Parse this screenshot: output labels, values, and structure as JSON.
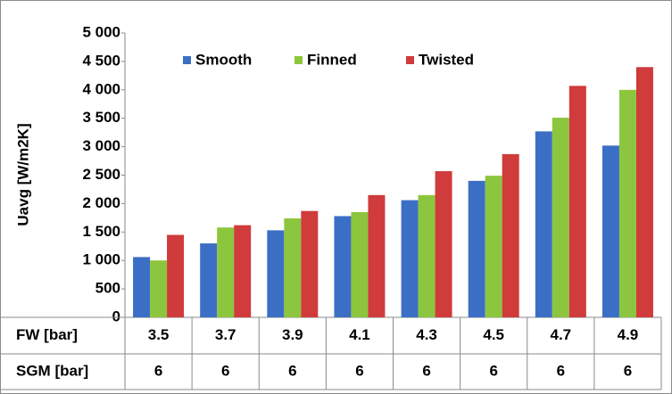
{
  "chart_data": {
    "type": "bar",
    "y_label": "Uavg [W/m2K]",
    "categories": [
      "3.5",
      "3.7",
      "3.9",
      "4.1",
      "4.3",
      "4.5",
      "4.7",
      "4.9"
    ],
    "category_label": "FW [bar]",
    "secondary_categories": {
      "label": "SGM [bar]",
      "values": [
        "6",
        "6",
        "6",
        "6",
        "6",
        "6",
        "6",
        "6"
      ]
    },
    "series": [
      {
        "name": "Smooth",
        "color": "#3b6fc6",
        "values": [
          1060,
          1300,
          1530,
          1780,
          2060,
          2400,
          3270,
          3020
        ]
      },
      {
        "name": "Finned",
        "color": "#8cc63e",
        "values": [
          1000,
          1580,
          1740,
          1850,
          2150,
          2490,
          3510,
          4000
        ]
      },
      {
        "name": "Twisted",
        "color": "#d03b3b",
        "values": [
          1450,
          1620,
          1870,
          2150,
          2570,
          2870,
          4070,
          4400
        ]
      }
    ],
    "ylim": [
      0,
      5000
    ],
    "yticks": [
      0,
      500,
      {
        "value": 1000,
        "label": "1 000"
      },
      {
        "value": 1500,
        "label": "1 500"
      },
      {
        "value": 2000,
        "label": "2 000"
      },
      {
        "value": 2500,
        "label": "2 500"
      },
      {
        "value": 3000,
        "label": "3 000"
      },
      {
        "value": 3500,
        "label": "3 500"
      },
      {
        "value": 4000,
        "label": "4 000"
      },
      {
        "value": 4500,
        "label": "4 500"
      },
      {
        "value": 5000,
        "label": "5 000"
      }
    ],
    "grid": false,
    "legend": "top"
  }
}
